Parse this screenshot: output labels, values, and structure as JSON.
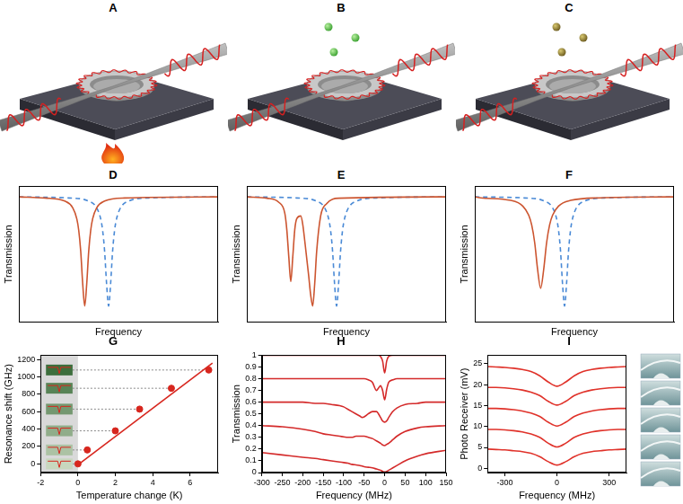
{
  "illustrations": [
    {
      "panel": "A"
    },
    {
      "panel": "B"
    },
    {
      "panel": "C"
    }
  ],
  "chart_data": [
    {
      "panel": "D",
      "type": "line",
      "x_label": "Frequency",
      "y_label": "Transmission",
      "xlim": [
        0,
        100
      ],
      "ylim": [
        0,
        1
      ],
      "tick_labels": false,
      "grid": false,
      "series": [
        {
          "color": "#4a8ad6",
          "line_style": "dashed",
          "x": [
            0,
            25,
            35,
            39,
            41,
            42,
            43,
            44,
            45,
            46,
            47,
            48,
            49,
            51,
            55,
            65,
            100
          ],
          "values": [
            0.92,
            0.912,
            0.889,
            0.84,
            0.76,
            0.674,
            0.52,
            0.28,
            0.12,
            0.28,
            0.52,
            0.674,
            0.76,
            0.84,
            0.889,
            0.912,
            0.92
          ]
        },
        {
          "color": "#cc5530",
          "line_style": "solid",
          "x": [
            0,
            13,
            23,
            27,
            29,
            30,
            31,
            32,
            33,
            34,
            35,
            36,
            37,
            39,
            43,
            53,
            100
          ],
          "values": [
            0.92,
            0.912,
            0.889,
            0.84,
            0.76,
            0.674,
            0.52,
            0.28,
            0.12,
            0.28,
            0.52,
            0.674,
            0.76,
            0.84,
            0.889,
            0.912,
            0.92
          ]
        }
      ]
    },
    {
      "panel": "E",
      "type": "line",
      "x_label": "Frequency",
      "y_label": "Transmission",
      "xlim": [
        0,
        100
      ],
      "ylim": [
        0,
        1
      ],
      "tick_labels": false,
      "grid": false,
      "series": [
        {
          "color": "#4a8ad6",
          "line_style": "dashed",
          "x": [
            0,
            25,
            35,
            39,
            41,
            42,
            43,
            44,
            45,
            46,
            47,
            48,
            49,
            51,
            55,
            65,
            100
          ],
          "values": [
            0.92,
            0.912,
            0.889,
            0.84,
            0.76,
            0.674,
            0.52,
            0.28,
            0.12,
            0.28,
            0.52,
            0.674,
            0.76,
            0.84,
            0.889,
            0.912,
            0.92
          ]
        },
        {
          "color": "#cc5530",
          "line_style": "solid",
          "x": [
            0,
            10,
            16,
            19,
            20,
            21,
            22,
            23,
            24,
            25,
            27,
            28,
            29,
            31,
            32,
            33,
            34,
            35,
            37,
            40,
            46,
            100
          ],
          "values": [
            0.92,
            0.91,
            0.88,
            0.8,
            0.68,
            0.48,
            0.3,
            0.48,
            0.68,
            0.76,
            0.78,
            0.72,
            0.6,
            0.34,
            0.2,
            0.12,
            0.28,
            0.52,
            0.78,
            0.87,
            0.91,
            0.92
          ]
        }
      ]
    },
    {
      "panel": "F",
      "type": "line",
      "x_label": "Frequency",
      "y_label": "Transmission",
      "xlim": [
        0,
        100
      ],
      "ylim": [
        0,
        1
      ],
      "tick_labels": false,
      "grid": false,
      "series": [
        {
          "color": "#4a8ad6",
          "line_style": "dashed",
          "x": [
            0,
            25,
            35,
            39,
            41,
            42,
            43,
            44,
            45,
            46,
            47,
            48,
            49,
            51,
            55,
            65,
            100
          ],
          "values": [
            0.92,
            0.912,
            0.889,
            0.84,
            0.76,
            0.674,
            0.52,
            0.28,
            0.12,
            0.28,
            0.52,
            0.674,
            0.76,
            0.84,
            0.889,
            0.912,
            0.92
          ]
        },
        {
          "color": "#cc5530",
          "line_style": "solid",
          "x": [
            0,
            3,
            18,
            24,
            27,
            28.5,
            30,
            31.5,
            33,
            34.5,
            36,
            37.5,
            39,
            42,
            48,
            63,
            100
          ],
          "values": [
            0.92,
            0.913,
            0.894,
            0.853,
            0.786,
            0.714,
            0.585,
            0.384,
            0.25,
            0.384,
            0.585,
            0.714,
            0.786,
            0.853,
            0.894,
            0.913,
            0.92
          ]
        }
      ]
    },
    {
      "panel": "G",
      "type": "scatter",
      "x_label": "Temperature change (K)",
      "y_label": "Resonance shift (GHz)",
      "xlim": [
        -2,
        7.5
      ],
      "ylim": [
        -100,
        1250
      ],
      "xticks": [
        -2,
        0,
        2,
        4,
        6
      ],
      "yticks": [
        0,
        200,
        400,
        600,
        800,
        1000,
        1200
      ],
      "grid": false,
      "shaded_range": [
        -2,
        0
      ],
      "series": [
        {
          "type": "line",
          "color": "#d7261e",
          "line_style": "solid",
          "x": [
            0,
            7.2
          ],
          "values": [
            -10,
            1160
          ]
        },
        {
          "type": "scatter",
          "color": "#d7261e",
          "marker": "circle",
          "x": [
            0,
            0.5,
            2,
            3.3,
            5,
            7
          ],
          "values": [
            0,
            160,
            380,
            630,
            870,
            1080
          ]
        }
      ]
    },
    {
      "panel": "H",
      "type": "line",
      "x_label": "Frequency (MHz)",
      "y_label": "Transmission",
      "xlim": [
        -300,
        150
      ],
      "ylim": [
        0,
        1
      ],
      "xticks": [
        -300,
        -250,
        -200,
        -150,
        -100,
        -50,
        0,
        50,
        100,
        150
      ],
      "yticks": [
        0,
        0.1,
        0.2,
        0.3,
        0.4,
        0.5,
        0.6,
        0.7,
        0.8,
        0.9,
        1
      ],
      "grid": false,
      "series": [
        {
          "color": "#d42a2a",
          "line_style": "solid",
          "x": [
            -300,
            -250,
            -200,
            -170,
            -150,
            -130,
            -110,
            -100,
            -90,
            -80,
            -70,
            -60,
            -55,
            -50,
            -40,
            -30,
            -20,
            -15,
            -10,
            -5,
            0,
            5,
            10,
            20,
            30,
            50,
            80,
            100,
            150
          ],
          "values": [
            1,
            1,
            1,
            1,
            1,
            1,
            1,
            1,
            1,
            1,
            1,
            1,
            1,
            1,
            1,
            1,
            1,
            1,
            0.99,
            0.95,
            0.85,
            0.95,
            0.99,
            1,
            1,
            1,
            1,
            1,
            1
          ]
        },
        {
          "color": "#d42a2a",
          "line_style": "solid",
          "x": [
            -300,
            -250,
            -200,
            -170,
            -150,
            -130,
            -110,
            -100,
            -90,
            -80,
            -70,
            -60,
            -55,
            -50,
            -40,
            -30,
            -20,
            -15,
            -10,
            -5,
            0,
            5,
            10,
            20,
            30,
            50,
            80,
            100,
            150
          ],
          "values": [
            0.8,
            0.8,
            0.8,
            0.8,
            0.8,
            0.8,
            0.8,
            0.8,
            0.8,
            0.8,
            0.8,
            0.8,
            0.8,
            0.8,
            0.79,
            0.77,
            0.7,
            0.72,
            0.74,
            0.7,
            0.62,
            0.71,
            0.77,
            0.79,
            0.8,
            0.8,
            0.8,
            0.8,
            0.8
          ]
        },
        {
          "color": "#d42a2a",
          "line_style": "solid",
          "x": [
            -300,
            -250,
            -200,
            -170,
            -150,
            -130,
            -110,
            -100,
            -90,
            -80,
            -70,
            -60,
            -55,
            -50,
            -40,
            -30,
            -20,
            -15,
            -10,
            -5,
            0,
            5,
            10,
            20,
            30,
            50,
            80,
            100,
            150
          ],
          "values": [
            0.6,
            0.6,
            0.6,
            0.59,
            0.59,
            0.58,
            0.57,
            0.56,
            0.54,
            0.52,
            0.5,
            0.48,
            0.47,
            0.475,
            0.5,
            0.52,
            0.52,
            0.5,
            0.47,
            0.44,
            0.43,
            0.44,
            0.47,
            0.52,
            0.55,
            0.58,
            0.59,
            0.6,
            0.6
          ]
        },
        {
          "color": "#d42a2a",
          "line_style": "solid",
          "x": [
            -300,
            -250,
            -200,
            -170,
            -150,
            -130,
            -110,
            -100,
            -90,
            -80,
            -70,
            -60,
            -55,
            -50,
            -40,
            -30,
            -20,
            -15,
            -10,
            -5,
            0,
            5,
            10,
            20,
            30,
            50,
            80,
            100,
            150
          ],
          "values": [
            0.4,
            0.39,
            0.37,
            0.35,
            0.33,
            0.32,
            0.31,
            0.305,
            0.3,
            0.3,
            0.31,
            0.31,
            0.31,
            0.31,
            0.3,
            0.29,
            0.27,
            0.26,
            0.25,
            0.235,
            0.23,
            0.24,
            0.25,
            0.28,
            0.31,
            0.35,
            0.38,
            0.39,
            0.4
          ]
        },
        {
          "color": "#d42a2a",
          "line_style": "solid",
          "x": [
            -300,
            -250,
            -200,
            -170,
            -150,
            -130,
            -110,
            -100,
            -90,
            -80,
            -70,
            -60,
            -55,
            -50,
            -40,
            -30,
            -20,
            -15,
            -10,
            -5,
            0,
            5,
            10,
            20,
            30,
            50,
            80,
            100,
            150
          ],
          "values": [
            0.17,
            0.15,
            0.13,
            0.12,
            0.11,
            0.1,
            0.09,
            0.085,
            0.08,
            0.07,
            0.065,
            0.06,
            0.055,
            0.05,
            0.045,
            0.04,
            0.03,
            0.025,
            0.02,
            0.01,
            0.005,
            0.01,
            0.02,
            0.04,
            0.06,
            0.1,
            0.14,
            0.16,
            0.19
          ]
        }
      ]
    },
    {
      "panel": "I",
      "type": "line",
      "x_label": "Frequency (MHz)",
      "y_label": "Photo Receiver (mV)",
      "xlim": [
        -400,
        400
      ],
      "ylim": [
        -1,
        27
      ],
      "xticks": [
        -300,
        0,
        300
      ],
      "yticks": [
        0,
        5,
        10,
        15,
        20,
        25
      ],
      "grid": false,
      "series": [
        {
          "color": "#e0322a",
          "line_style": "solid",
          "x": [
            -400,
            -350,
            -300,
            -250,
            -200,
            -150,
            -100,
            -50,
            0,
            50,
            100,
            150,
            200,
            250,
            300,
            350,
            400
          ],
          "values": [
            24.3,
            24.2,
            24.1,
            23.9,
            23.6,
            23.1,
            22.1,
            20.6,
            19.6,
            20.6,
            22.1,
            23.1,
            23.6,
            23.9,
            24.1,
            24.2,
            24.3
          ]
        },
        {
          "color": "#e0322a",
          "line_style": "solid",
          "x": [
            -400,
            -350,
            -300,
            -250,
            -200,
            -150,
            -100,
            -50,
            0,
            50,
            100,
            150,
            200,
            250,
            300,
            350,
            400
          ],
          "values": [
            19.3,
            19.3,
            19.2,
            19.0,
            18.7,
            18.2,
            17.4,
            16.0,
            15.1,
            16.0,
            17.4,
            18.2,
            18.7,
            19.0,
            19.2,
            19.3,
            19.3
          ]
        },
        {
          "color": "#e0322a",
          "line_style": "solid",
          "x": [
            -400,
            -350,
            -300,
            -250,
            -200,
            -150,
            -100,
            -50,
            0,
            50,
            100,
            150,
            200,
            250,
            300,
            350,
            400
          ],
          "values": [
            14.3,
            14.3,
            14.2,
            14.0,
            13.7,
            13.2,
            12.4,
            11.0,
            10.1,
            11.0,
            12.4,
            13.2,
            13.7,
            14.0,
            14.2,
            14.3,
            14.3
          ]
        },
        {
          "color": "#e0322a",
          "line_style": "solid",
          "x": [
            -400,
            -350,
            -300,
            -250,
            -200,
            -150,
            -100,
            -50,
            0,
            50,
            100,
            150,
            200,
            250,
            300,
            350,
            400
          ],
          "values": [
            9.3,
            9.3,
            9.2,
            9.0,
            8.7,
            8.2,
            7.4,
            6.0,
            5.1,
            6.0,
            7.4,
            8.2,
            8.7,
            9.0,
            9.2,
            9.3,
            9.3
          ]
        },
        {
          "color": "#e0322a",
          "line_style": "solid",
          "x": [
            -400,
            -350,
            -300,
            -250,
            -200,
            -150,
            -100,
            -50,
            0,
            50,
            100,
            150,
            200,
            250,
            300,
            350,
            400
          ],
          "values": [
            4.6,
            4.5,
            4.4,
            4.2,
            4.0,
            3.6,
            2.8,
            1.6,
            0.8,
            1.6,
            2.8,
            3.6,
            4.0,
            4.2,
            4.4,
            4.5,
            4.6
          ]
        }
      ]
    }
  ]
}
